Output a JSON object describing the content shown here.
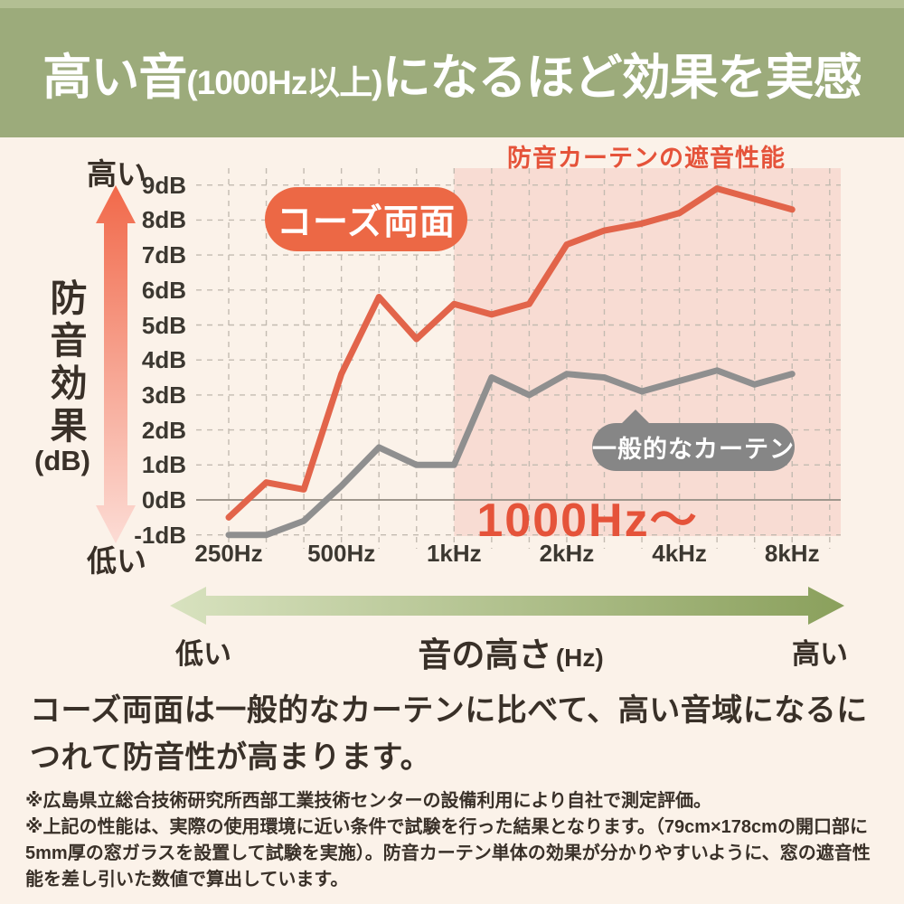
{
  "colors": {
    "page_bg": "#fbf2e9",
    "banner_green": "#9cab7b",
    "banner_strip": "#b3bf93",
    "accent": "#e5533a",
    "line_main": "#e2644a",
    "line_compare": "#8f8f8f",
    "bubble_main": "#ec6845",
    "bubble_compare": "#868686",
    "highlight_bg": "#f8dcd3",
    "grid": "#c3bbb1",
    "zero_line": "#9e968c",
    "text_dark": "#393028",
    "axis_text": "#3c3831",
    "x_arrow_from": "#d8e2bf",
    "x_arrow_to": "#8aa05c",
    "y_arrow_from": "#f1694a",
    "y_arrow_to": "#fcdcd5"
  },
  "header": {
    "title_emphasis": "高い音",
    "title_paren": "(1000Hz以上)",
    "title_rest": "になるほど効果を実感"
  },
  "chart": {
    "title": "防音カーテンの遮音性能",
    "y_high": "高い",
    "y_low": "低い",
    "y_title": "防音効果",
    "y_unit": "(dB)"
  },
  "chart_data": {
    "type": "line",
    "x_scale": "log (1/3-octave bands)",
    "x": [
      250,
      315,
      400,
      500,
      630,
      800,
      1000,
      1250,
      1600,
      2000,
      2500,
      3150,
      4000,
      5000,
      6300,
      8000
    ],
    "x_tick_labels": [
      {
        "hz": 250,
        "label": "250Hz"
      },
      {
        "hz": 500,
        "label": "500Hz"
      },
      {
        "hz": 1000,
        "label": "1kHz"
      },
      {
        "hz": 2000,
        "label": "2kHz"
      },
      {
        "hz": 4000,
        "label": "4kHz"
      },
      {
        "hz": 8000,
        "label": "8kHz"
      }
    ],
    "y_ticks": [
      {
        "v": 9,
        "label": "9dB"
      },
      {
        "v": 8,
        "label": "8dB"
      },
      {
        "v": 7,
        "label": "7dB"
      },
      {
        "v": 6,
        "label": "6dB"
      },
      {
        "v": 5,
        "label": "5dB"
      },
      {
        "v": 4,
        "label": "4dB"
      },
      {
        "v": 3,
        "label": "3dB"
      },
      {
        "v": 2,
        "label": "2dB"
      },
      {
        "v": 1,
        "label": "1dB"
      },
      {
        "v": 0,
        "label": "0dB"
      },
      {
        "v": -1,
        "label": "-1dB"
      }
    ],
    "ylim": [
      -1,
      9
    ],
    "grid": true,
    "ylabel": "防音効果 (dB)",
    "xlabel": "音の高さ (Hz)",
    "series": [
      {
        "name": "コーズ両面",
        "color": "#e2644a",
        "values": [
          -0.5,
          0.5,
          0.3,
          3.6,
          5.8,
          4.6,
          5.6,
          5.3,
          5.6,
          7.3,
          7.7,
          7.9,
          8.2,
          8.9,
          8.6,
          8.3
        ]
      },
      {
        "name": "一般的なカーテン",
        "color": "#8f8f8f",
        "values": [
          -1.0,
          -1.0,
          -0.6,
          0.4,
          1.5,
          1.0,
          1.0,
          3.5,
          3.0,
          3.6,
          3.5,
          3.1,
          3.4,
          3.7,
          3.3,
          3.6
        ]
      }
    ],
    "highlight_region": {
      "from_hz": 1000,
      "label": "1000Hz〜",
      "color": "#f8dcd3"
    }
  },
  "bubbles": {
    "series1": {
      "label": "コーズ両面",
      "color": "#ec6845"
    },
    "series2": {
      "label": "一般的なカーテン",
      "color": "#868686"
    }
  },
  "x_axis_arrow": {
    "low": "低い",
    "title": "音の高さ",
    "unit": "(Hz)",
    "high": "高い"
  },
  "body_text": {
    "line": "コーズ両面は一般的なカーテンに比べて、高い音域になるにつれて防音性が高まります。"
  },
  "footnotes": [
    "※広島県立総合技術研究所西部工業技術センターの設備利用により自社で測定評価。",
    "※上記の性能は、実際の使用環境に近い条件で試験を行った結果となります。（79cm×178cmの開口部に5mm厚の窓ガラスを設置して試験を実施）。防音カーテン単体の効果が分かりやすいように、窓の遮音性能を差し引いた数値で算出しています。"
  ]
}
